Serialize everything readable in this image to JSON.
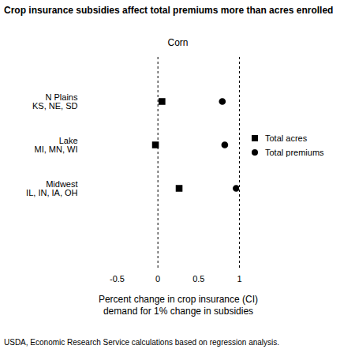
{
  "chart_data": {
    "type": "scatter",
    "title": "Crop insurance subsidies affect total premiums more than acres enrolled",
    "subtitle": "Corn",
    "caption": "USDA, Economic Research Service calculations based on regression analysis.",
    "x_label": "Percent change in crop insurance (CI)\ndemand for 1% change in subsidies",
    "categories": [
      "N Plains\nKS, NE, SD",
      "Lake\nMI, MN, WI",
      "Midwest\nIL, IN, IA, OH"
    ],
    "series": [
      {
        "name": "Total acres",
        "color": "#000000",
        "marker": "square",
        "values": [
          0.05,
          -0.03,
          0.26
        ]
      },
      {
        "name": "Total premiums",
        "color": "#000000",
        "marker": "circle",
        "values": [
          0.79,
          0.82,
          0.96
        ]
      }
    ],
    "orientation": "horizontal",
    "xlim": [
      -0.5,
      1
    ],
    "xticks": [
      -0.5,
      0,
      0.5,
      1
    ],
    "reference_lines": [
      0,
      1
    ],
    "legend": "right",
    "grid": false
  }
}
